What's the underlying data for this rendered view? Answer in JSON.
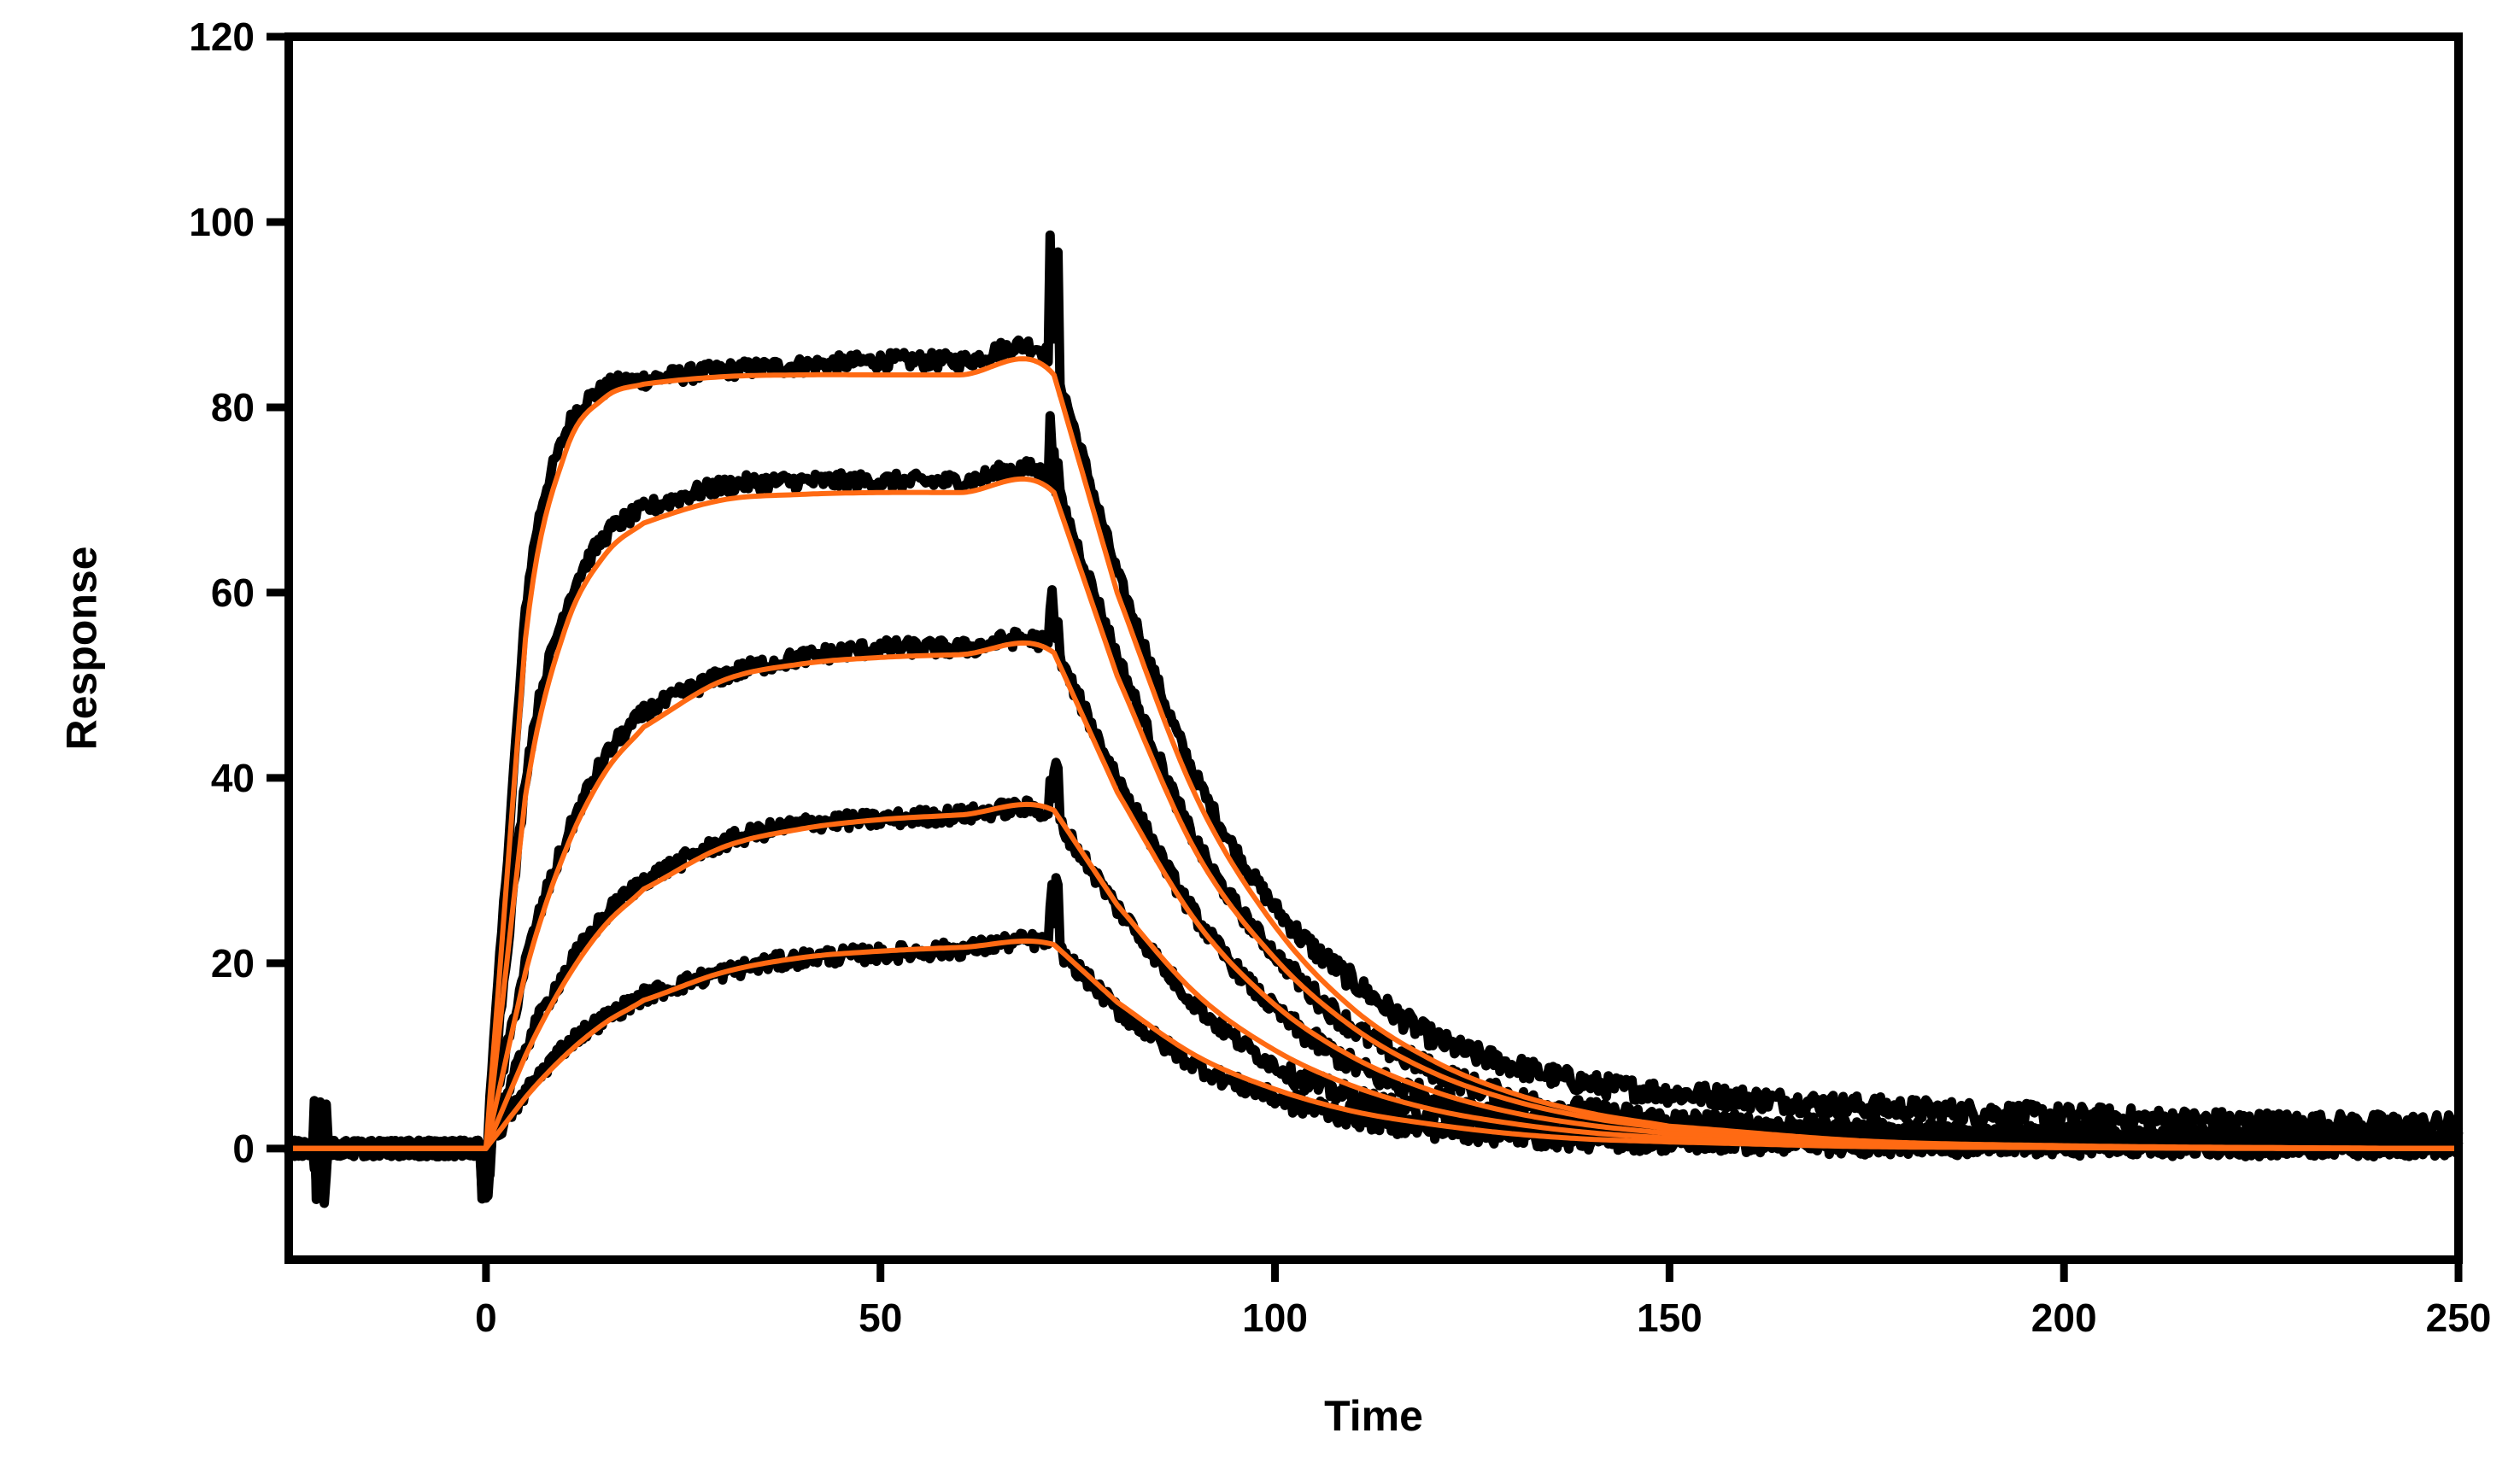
{
  "chart_data": {
    "type": "line",
    "title": "",
    "xlabel": "Time",
    "ylabel": "Response",
    "xlim": [
      -25,
      250
    ],
    "ylim": [
      -12,
      120
    ],
    "xticks": [
      0,
      50,
      100,
      150,
      200,
      250
    ],
    "yticks": [
      0,
      20,
      40,
      60,
      80,
      100,
      120
    ],
    "grid": false,
    "legend": "none",
    "colors": {
      "data": "#000000",
      "fit": "#ff6a13",
      "frame": "#000000"
    },
    "association_start": 0,
    "dissociation_start": 72,
    "series": [
      {
        "role": "measured",
        "x": [
          -25,
          0,
          5,
          10,
          15,
          20,
          30,
          40,
          50,
          60,
          72,
          80,
          90,
          100,
          110,
          120,
          130,
          140,
          150,
          175,
          200,
          225,
          250
        ],
        "y": [
          0,
          0,
          58,
          77,
          82,
          83,
          84,
          84.5,
          85,
          85,
          85,
          62,
          40,
          26,
          18,
          12,
          9,
          7,
          6,
          4.5,
          3.5,
          2.8,
          2.5
        ]
      },
      {
        "role": "measured",
        "x": [
          -25,
          0,
          5,
          10,
          15,
          20,
          30,
          40,
          50,
          60,
          72,
          80,
          90,
          100,
          110,
          120,
          130,
          140,
          150,
          175,
          200,
          225,
          250
        ],
        "y": [
          0,
          0,
          40,
          58,
          66,
          69,
          71.5,
          72,
          72,
          72,
          72,
          53,
          33,
          21,
          13,
          8.5,
          5.5,
          4,
          3,
          2,
          1.5,
          1.2,
          1
        ]
      },
      {
        "role": "measured",
        "x": [
          -25,
          0,
          5,
          10,
          15,
          20,
          30,
          40,
          50,
          60,
          72,
          80,
          90,
          100,
          110,
          120,
          130,
          140,
          150,
          175,
          200,
          225,
          250
        ],
        "y": [
          0,
          0,
          20,
          33,
          42,
          47,
          51,
          53,
          54,
          54,
          54,
          40,
          25,
          15,
          9,
          5.5,
          3.5,
          2.5,
          2,
          1.5,
          1,
          0.8,
          0.8
        ]
      },
      {
        "role": "measured",
        "x": [
          -25,
          0,
          5,
          10,
          15,
          20,
          30,
          40,
          50,
          60,
          72,
          80,
          90,
          100,
          110,
          120,
          130,
          140,
          150,
          175,
          200,
          225,
          250
        ],
        "y": [
          0,
          0,
          11,
          19,
          25,
          29,
          33,
          35,
          35.5,
          36,
          36,
          26,
          15.5,
          9,
          5.5,
          3.5,
          2.3,
          1.6,
          1.2,
          0.8,
          0.6,
          0.5,
          0.5
        ]
      },
      {
        "role": "measured",
        "x": [
          -25,
          0,
          5,
          10,
          15,
          20,
          30,
          40,
          50,
          60,
          72,
          80,
          90,
          100,
          110,
          120,
          130,
          140,
          150,
          175,
          200,
          225,
          250
        ],
        "y": [
          0,
          0,
          6,
          11,
          14,
          16.5,
          19,
          20.5,
          21,
          21.5,
          22,
          15,
          9,
          5.5,
          3.5,
          2.2,
          1.5,
          1,
          0.8,
          0.5,
          0.4,
          0.3,
          0.3
        ]
      },
      {
        "role": "fit",
        "x": [
          -25,
          0,
          5,
          10,
          15,
          20,
          30,
          40,
          50,
          60,
          72,
          80,
          90,
          100,
          110,
          120,
          130,
          140,
          150,
          175,
          200,
          225,
          250
        ],
        "y": [
          0,
          0,
          55,
          75,
          81,
          82.5,
          83.3,
          83.5,
          83.5,
          83.5,
          83.5,
          60,
          38,
          24,
          15,
          9.5,
          6,
          3.8,
          2.4,
          0.8,
          0.3,
          0.1,
          0
        ]
      },
      {
        "role": "fit",
        "x": [
          -25,
          0,
          5,
          10,
          15,
          20,
          30,
          40,
          50,
          60,
          72,
          80,
          90,
          100,
          110,
          120,
          130,
          140,
          150,
          175,
          200,
          225,
          250
        ],
        "y": [
          0,
          0,
          38,
          56,
          64,
          67.5,
          70,
          70.6,
          70.8,
          70.8,
          70.8,
          51,
          32,
          20.5,
          13,
          8.2,
          5.2,
          3.3,
          2.1,
          0.7,
          0.2,
          0.1,
          0
        ]
      },
      {
        "role": "fit",
        "x": [
          -25,
          0,
          5,
          10,
          15,
          20,
          30,
          40,
          50,
          60,
          72,
          80,
          90,
          100,
          110,
          120,
          130,
          140,
          150,
          175,
          200,
          225,
          250
        ],
        "y": [
          0,
          0,
          19,
          32,
          40.5,
          45.5,
          50.5,
          52.3,
          53,
          53.3,
          53.5,
          38.5,
          24.5,
          15.5,
          9.8,
          6.2,
          3.9,
          2.5,
          1.6,
          0.5,
          0.2,
          0.05,
          0
        ]
      },
      {
        "role": "fit",
        "x": [
          -25,
          0,
          5,
          10,
          15,
          20,
          30,
          40,
          50,
          60,
          72,
          80,
          90,
          100,
          110,
          120,
          130,
          140,
          150,
          175,
          200,
          225,
          250
        ],
        "y": [
          0,
          0,
          10,
          18,
          24,
          28,
          32.5,
          34.5,
          35.5,
          36,
          36.5,
          26.3,
          16.7,
          10.6,
          6.7,
          4.2,
          2.7,
          1.7,
          1.1,
          0.4,
          0.1,
          0.05,
          0
        ]
      },
      {
        "role": "fit",
        "x": [
          -25,
          0,
          5,
          10,
          15,
          20,
          30,
          40,
          50,
          60,
          72,
          80,
          90,
          100,
          110,
          120,
          130,
          140,
          150,
          175,
          200,
          225,
          250
        ],
        "y": [
          0,
          0,
          5.5,
          10,
          13.5,
          16,
          19,
          20.6,
          21.3,
          21.7,
          22,
          15.8,
          10,
          6.4,
          4,
          2.6,
          1.6,
          1,
          0.7,
          0.2,
          0.1,
          0,
          0
        ]
      }
    ]
  }
}
